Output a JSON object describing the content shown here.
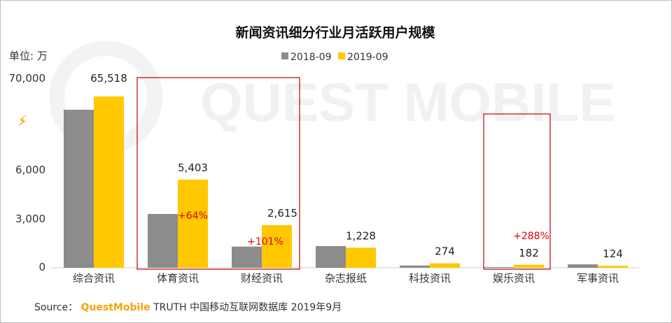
{
  "source": {
    "prefix": "Source：",
    "brand": "QuestMobile",
    "rest": "TRUTH 中国移动互联网数据库 2019年9月"
  },
  "watermark": "QUEST MOBILE",
  "colors": {
    "series_2018": "#8c8c8c",
    "series_2019": "#ffc800",
    "highlight_box": "#c00000",
    "growth_text": "#e00000",
    "break_icon": "#f5a300"
  },
  "chart_data": {
    "type": "bar",
    "title": "新闻资讯细分行业月活跃用户规模",
    "unit_label": "单位: 万",
    "ylabel": "",
    "xlabel": "",
    "y_ticks": [
      "70,000",
      "6,000",
      "3,000",
      "0"
    ],
    "axis_break": true,
    "legend": [
      "2018-09",
      "2019-09"
    ],
    "categories": [
      "综合资讯",
      "体育资讯",
      "财经资讯",
      "杂志报纸",
      "科技资讯",
      "娱乐资讯",
      "军事资讯"
    ],
    "series": [
      {
        "name": "2018-09",
        "values": [
          null,
          3300,
          1300,
          1330,
          140,
          47,
          210
        ],
        "labels": [
          "",
          "",
          "",
          "",
          "",
          "",
          ""
        ]
      },
      {
        "name": "2019-09",
        "values": [
          65518,
          5403,
          2615,
          1228,
          274,
          182,
          124
        ],
        "labels": [
          "65,518",
          "5,403",
          "2,615",
          "1,228",
          "274",
          "182",
          "124"
        ]
      }
    ],
    "growth_labels": [
      "",
      "+64%",
      "+101%",
      "",
      "",
      "+288%",
      ""
    ],
    "highlighted_categories": [
      "体育资讯",
      "财经资讯",
      "娱乐资讯"
    ]
  }
}
